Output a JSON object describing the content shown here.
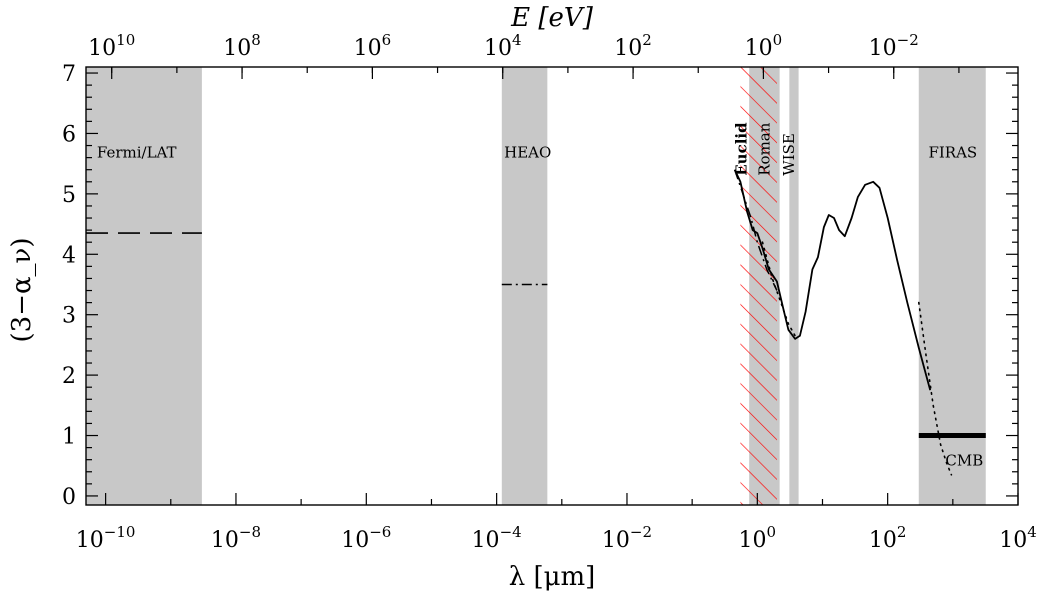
{
  "chart_data": {
    "type": "line",
    "xlabel": "λ  [μm]",
    "ylabel": "(3−α_ν)",
    "top_xlabel": "E  [eV]",
    "x_scale": "log",
    "xlim": [
      5e-11,
      10000
    ],
    "ylim": [
      -0.15,
      7.1
    ],
    "x_ticks": [
      1e-10,
      1e-08,
      1e-06,
      0.0001,
      0.01,
      1,
      100,
      10000
    ],
    "x_tick_labels": [
      {
        "base": "10",
        "exp": "−10"
      },
      {
        "base": "10",
        "exp": "−8"
      },
      {
        "base": "10",
        "exp": "−6"
      },
      {
        "base": "10",
        "exp": "−4"
      },
      {
        "base": "10",
        "exp": "−2"
      },
      {
        "base": "10",
        "exp": "0"
      },
      {
        "base": "10",
        "exp": "2"
      },
      {
        "base": "10",
        "exp": "4"
      }
    ],
    "y_ticks": [
      0,
      1,
      2,
      3,
      4,
      5,
      6,
      7
    ],
    "y_tick_labels": [
      "0",
      "1",
      "2",
      "3",
      "4",
      "5",
      "6",
      "7"
    ],
    "top_ticks_lambda_um": [
      1.24e-10,
      1.24e-08,
      1.24e-06,
      0.000124,
      0.0124,
      1.24,
      124
    ],
    "top_tick_labels": [
      {
        "base": "10",
        "exp": "10"
      },
      {
        "base": "10",
        "exp": "8"
      },
      {
        "base": "10",
        "exp": "6"
      },
      {
        "base": "10",
        "exp": "4"
      },
      {
        "base": "10",
        "exp": "2"
      },
      {
        "base": "10",
        "exp": "0"
      },
      {
        "base": "10",
        "exp": "−2"
      }
    ],
    "bands": [
      {
        "label": "Fermi/LAT",
        "x": [
          5e-11,
          3e-09
        ],
        "color": "#c8c8c8"
      },
      {
        "label": "HEAO",
        "x": [
          0.00012,
          0.0006
        ],
        "color": "#c8c8c8"
      },
      {
        "label": "Roman",
        "x": [
          0.75,
          2.2
        ],
        "color": "#c8c8c8"
      },
      {
        "label": "WISE",
        "x": [
          3.1,
          4.3
        ],
        "color": "#c8c8c8"
      },
      {
        "label": "FIRAS",
        "x": [
          300,
          3200
        ],
        "color": "#c8c8c8"
      },
      {
        "label": "Euclid",
        "x": [
          0.55,
          2.0
        ],
        "color": "#ff0000",
        "hatched": true
      }
    ],
    "series": [
      {
        "style": "solid",
        "points": [
          [
            0.45,
            5.4
          ],
          [
            0.55,
            5.2
          ],
          [
            0.7,
            4.7
          ],
          [
            0.85,
            4.4
          ],
          [
            1.0,
            4.35
          ],
          [
            1.2,
            4.1
          ],
          [
            1.5,
            3.75
          ],
          [
            2.0,
            3.55
          ],
          [
            2.5,
            3.1
          ],
          [
            3.0,
            2.75
          ],
          [
            3.8,
            2.6
          ],
          [
            4.5,
            2.65
          ],
          [
            5.5,
            3.05
          ],
          [
            7.0,
            3.75
          ],
          [
            8.5,
            3.95
          ],
          [
            10.5,
            4.45
          ],
          [
            12.5,
            4.65
          ],
          [
            15,
            4.6
          ],
          [
            18,
            4.4
          ],
          [
            22,
            4.3
          ],
          [
            28,
            4.6
          ],
          [
            35,
            4.95
          ],
          [
            45,
            5.15
          ],
          [
            60,
            5.2
          ],
          [
            75,
            5.1
          ],
          [
            100,
            4.6
          ],
          [
            140,
            3.9
          ],
          [
            200,
            3.2
          ],
          [
            300,
            2.45
          ],
          [
            450,
            1.75
          ]
        ]
      },
      {
        "style": "dotted",
        "points": [
          [
            1.2,
            4.2
          ],
          [
            1.7,
            3.6
          ],
          [
            2.3,
            3.2
          ],
          [
            3.0,
            2.85
          ],
          [
            3.8,
            2.65
          ],
          [
            300,
            3.2
          ],
          [
            380,
            2.4
          ],
          [
            500,
            1.5
          ],
          [
            650,
            0.85
          ],
          [
            800,
            0.55
          ],
          [
            950,
            0.35
          ]
        ]
      },
      {
        "style": "dashdot",
        "points": [
          [
            0.45,
            5.4
          ],
          [
            0.6,
            5.0
          ],
          [
            0.8,
            4.6
          ],
          [
            1.0,
            4.2
          ],
          [
            1.4,
            3.75
          ],
          [
            2.0,
            3.4
          ]
        ]
      },
      {
        "style": "dashed",
        "points": [
          [
            5e-11,
            4.35
          ],
          [
            3e-09,
            4.35
          ]
        ]
      },
      {
        "style": "dashdot",
        "points": [
          [
            0.00012,
            3.5
          ],
          [
            0.0006,
            3.5
          ]
        ]
      },
      {
        "style": "thick",
        "points": [
          [
            300,
            1.0
          ],
          [
            3200,
            1.0
          ]
        ]
      }
    ],
    "annotations": [
      {
        "text": "Fermi/LAT",
        "x": 3e-10,
        "y": 5.6
      },
      {
        "text": "HEAO",
        "x": 0.0003,
        "y": 5.6
      },
      {
        "text": "FIRAS",
        "x": 1000,
        "y": 5.6
      },
      {
        "text": "CMB",
        "x": 1500,
        "y": 0.5
      },
      {
        "text": "Euclid",
        "x": 0.68,
        "y": 5.3,
        "color": "#ff0000",
        "rotated": true
      },
      {
        "text": "Roman",
        "x": 1.55,
        "y": 5.3,
        "rotated": true
      },
      {
        "text": "WISE",
        "x": 3.65,
        "y": 5.3,
        "rotated": true
      }
    ],
    "grid": false,
    "legend": "none"
  }
}
